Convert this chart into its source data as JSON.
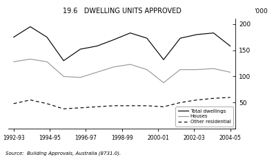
{
  "title": "19.6   DWELLING UNITS APPROVED",
  "ylabel_right": "'000",
  "source": "Source:  Building Approvals, Australia (8731.0).",
  "x_labels": [
    "1992-93",
    "1994-95",
    "1996-97",
    "1998-99",
    "2000-01",
    "2002-03",
    "2004-05"
  ],
  "total_dwellings": [
    175,
    195,
    175,
    130,
    152,
    158,
    170,
    183,
    173,
    132,
    173,
    180,
    183,
    158
  ],
  "houses": [
    128,
    133,
    128,
    100,
    98,
    108,
    118,
    123,
    113,
    88,
    113,
    113,
    115,
    108
  ],
  "other_residential": [
    48,
    55,
    48,
    38,
    40,
    42,
    44,
    44,
    44,
    42,
    50,
    55,
    58,
    60
  ],
  "ylim": [
    0,
    210
  ],
  "yticks": [
    0,
    50,
    100,
    150,
    200
  ],
  "legend_labels": [
    "Total dwellings",
    "Houses",
    "Other residential"
  ],
  "line_colors": [
    "#000000",
    "#999999",
    "#000000"
  ],
  "background": "#ffffff"
}
